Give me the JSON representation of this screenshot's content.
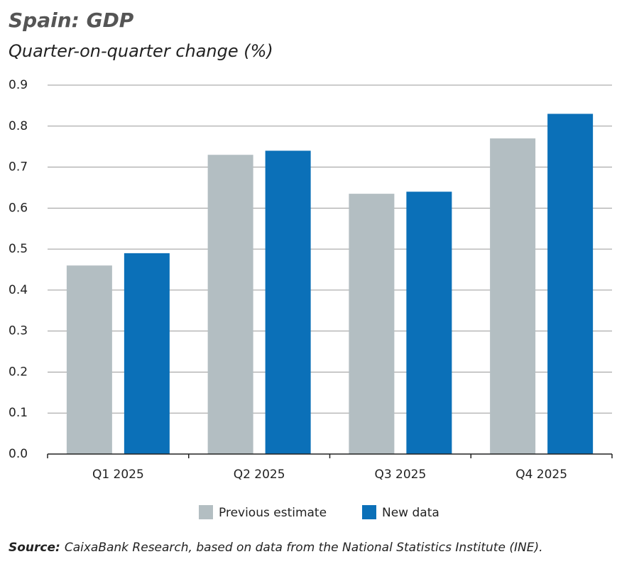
{
  "chart_data": {
    "type": "bar",
    "title": "Spain: GDP",
    "subtitle": "Quarter-on-quarter change (%)",
    "categories": [
      "Q1 2025",
      "Q2 2025",
      "Q3 2025",
      "Q4 2025"
    ],
    "series": [
      {
        "name": "Previous estimate",
        "color": "#b3bec2",
        "values": [
          0.46,
          0.73,
          0.635,
          0.77
        ]
      },
      {
        "name": "New data",
        "color": "#0b70b8",
        "values": [
          0.49,
          0.74,
          0.64,
          0.83
        ]
      }
    ],
    "ylim": [
      0,
      0.9
    ],
    "yticks": [
      {
        "value": 0,
        "label": "0.0"
      },
      0.1,
      0.2,
      0.3,
      0.4,
      0.5,
      0.6,
      0.7,
      0.8,
      0.9
    ],
    "grid": true,
    "legend": "bottom",
    "source_label": "Source:",
    "source_text": "CaixaBank Research, based on data from the National Statistics Institute (INE)."
  }
}
